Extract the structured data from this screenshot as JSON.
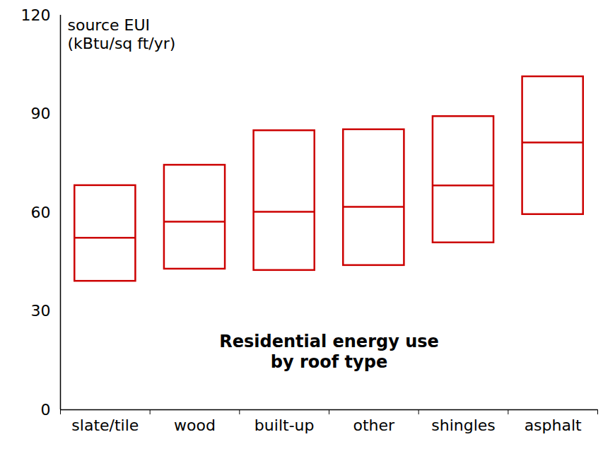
{
  "chart_data": {
    "type": "box",
    "title": "Residential energy use\nby roof type",
    "y_label": "source EUI\n(kBtu/sq ft/yr)",
    "categories": [
      "slate/tile",
      "wood",
      "built-up",
      "other",
      "shingles",
      "asphalt"
    ],
    "q1": [
      39.1,
      42.8,
      42.4,
      43.9,
      50.8,
      59.4
    ],
    "median": [
      52.3,
      57.2,
      60.2,
      61.7,
      68.2,
      81.3
    ],
    "q3": [
      68.2,
      74.4,
      84.9,
      85.2,
      89.2,
      101.3
    ],
    "color": "#cc0000",
    "ylim": [
      0,
      120
    ],
    "yticks": [
      0,
      30,
      60,
      90,
      120
    ]
  }
}
